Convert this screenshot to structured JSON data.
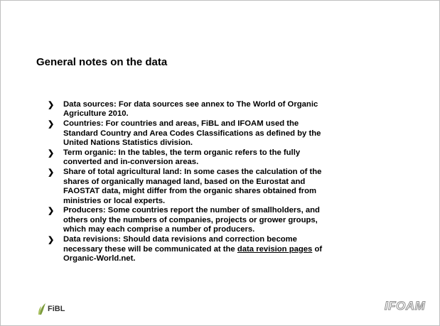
{
  "title": "General notes on the data",
  "bullets": [
    {
      "lines": [
        "Data sources: For data sources see annex to The World of Organic",
        "Agriculture 2010."
      ]
    },
    {
      "lines": [
        "Countries: For countries and areas, FiBL and IFOAM used the",
        "Standard Country and Area Codes Classifications as defined by the",
        "United Nations Statistics division."
      ]
    },
    {
      "lines": [
        "Term organic: In the tables, the term organic refers to the fully",
        "converted and in-conversion areas."
      ]
    },
    {
      "lines": [
        "Share of total agricultural land: In some cases the calculation of the",
        "shares of organically managed land, based on the Eurostat and",
        "FAOSTAT data, might differ from the organic shares obtained from",
        "ministries or local experts."
      ]
    },
    {
      "lines": [
        "Producers: Some countries report the number of smallholders, and",
        "others only the numbers of companies, projects or grower groups,",
        "which may each comprise a number of producers."
      ]
    },
    {
      "lines": [
        "Data revisions: Should data revisions and correction become",
        {
          "before": "necessary these will be communicated at the ",
          "link": "data revision pages",
          "after": " of"
        },
        "Organic-World.net."
      ]
    }
  ],
  "footer": {
    "left_logo": "FiBL",
    "right_logo": "IFOAM"
  }
}
